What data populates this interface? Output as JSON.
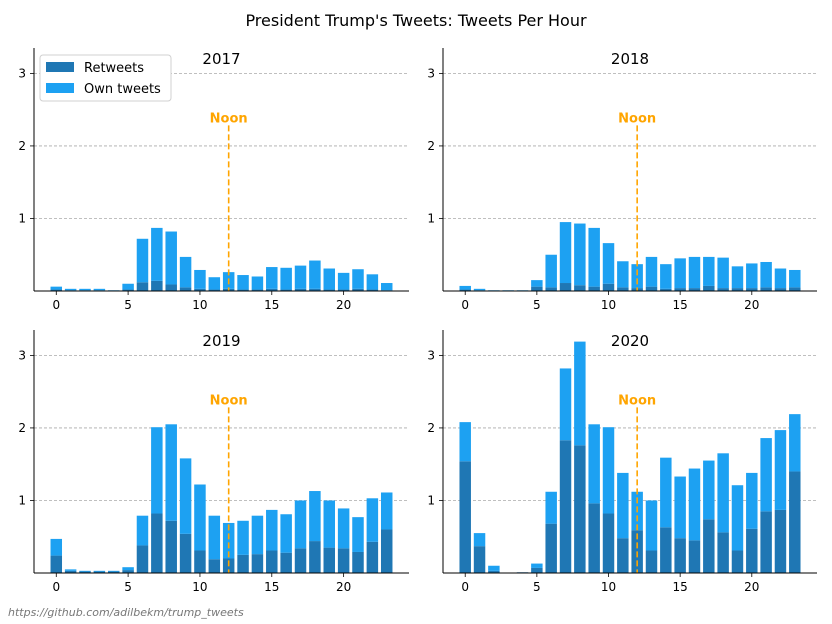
{
  "title": "President Trump's Tweets: Tweets Per Hour",
  "credit": "https://github.com/adilbekm/trump_tweets",
  "legend": {
    "placement": "upper-left",
    "entries": [
      "Retweets",
      "Own tweets"
    ]
  },
  "colors": {
    "retweets": "#1F77B4",
    "own": "#1DA1F2",
    "noon": "#FFA500",
    "grid": "#AAAAAA"
  },
  "chart_data": [
    {
      "type": "bar",
      "stacked": true,
      "title": "2017",
      "x": [
        0,
        1,
        2,
        3,
        4,
        5,
        6,
        7,
        8,
        9,
        10,
        11,
        12,
        13,
        14,
        15,
        16,
        17,
        18,
        19,
        20,
        21,
        22,
        23
      ],
      "xticks": [
        0,
        5,
        10,
        15,
        20
      ],
      "yticks": [
        1,
        2,
        3
      ],
      "ylim": [
        0,
        3.35
      ],
      "grid": "y-dashed",
      "annotation": {
        "x": 12,
        "label": "Noon",
        "y_top": 2.27
      },
      "series": [
        {
          "name": "Retweets",
          "values": [
            0.02,
            0.01,
            0.01,
            0.01,
            0.0,
            0.02,
            0.12,
            0.14,
            0.09,
            0.05,
            0.03,
            0.02,
            0.03,
            0.02,
            0.02,
            0.03,
            0.02,
            0.03,
            0.03,
            0.02,
            0.02,
            0.03,
            0.02,
            0.01
          ]
        },
        {
          "name": "Own tweets",
          "values": [
            0.04,
            0.02,
            0.02,
            0.02,
            0.01,
            0.08,
            0.6,
            0.73,
            0.73,
            0.42,
            0.26,
            0.17,
            0.23,
            0.2,
            0.18,
            0.3,
            0.3,
            0.32,
            0.39,
            0.29,
            0.23,
            0.27,
            0.21,
            0.1
          ]
        }
      ]
    },
    {
      "type": "bar",
      "stacked": true,
      "title": "2018",
      "x": [
        0,
        1,
        2,
        3,
        4,
        5,
        6,
        7,
        8,
        9,
        10,
        11,
        12,
        13,
        14,
        15,
        16,
        17,
        18,
        19,
        20,
        21,
        22,
        23
      ],
      "xticks": [
        0,
        5,
        10,
        15,
        20
      ],
      "yticks": [
        1,
        2,
        3
      ],
      "ylim": [
        0,
        3.35
      ],
      "grid": "y-dashed",
      "annotation": {
        "x": 12,
        "label": "Noon",
        "y_top": 2.27
      },
      "series": [
        {
          "name": "Retweets",
          "values": [
            0.02,
            0.01,
            0.0,
            0.0,
            0.0,
            0.06,
            0.05,
            0.11,
            0.08,
            0.06,
            0.1,
            0.05,
            0.04,
            0.06,
            0.03,
            0.04,
            0.04,
            0.07,
            0.04,
            0.04,
            0.04,
            0.05,
            0.04,
            0.05
          ]
        },
        {
          "name": "Own tweets",
          "values": [
            0.05,
            0.02,
            0.01,
            0.01,
            0.01,
            0.09,
            0.45,
            0.84,
            0.85,
            0.81,
            0.56,
            0.36,
            0.33,
            0.41,
            0.34,
            0.41,
            0.43,
            0.4,
            0.42,
            0.3,
            0.34,
            0.35,
            0.27,
            0.24
          ]
        }
      ]
    },
    {
      "type": "bar",
      "stacked": true,
      "title": "2019",
      "x": [
        0,
        1,
        2,
        3,
        4,
        5,
        6,
        7,
        8,
        9,
        10,
        11,
        12,
        13,
        14,
        15,
        16,
        17,
        18,
        19,
        20,
        21,
        22,
        23
      ],
      "xticks": [
        0,
        5,
        10,
        15,
        20
      ],
      "yticks": [
        1,
        2,
        3
      ],
      "ylim": [
        0,
        3.35
      ],
      "grid": "y-dashed",
      "annotation": {
        "x": 12,
        "label": "Noon",
        "y_top": 2.27
      },
      "series": [
        {
          "name": "Retweets",
          "values": [
            0.24,
            0.03,
            0.02,
            0.02,
            0.02,
            0.04,
            0.38,
            0.82,
            0.72,
            0.54,
            0.31,
            0.19,
            0.2,
            0.25,
            0.26,
            0.31,
            0.28,
            0.34,
            0.44,
            0.35,
            0.34,
            0.29,
            0.43,
            0.6
          ]
        },
        {
          "name": "Own tweets",
          "values": [
            0.23,
            0.02,
            0.01,
            0.01,
            0.01,
            0.04,
            0.41,
            1.19,
            1.33,
            1.04,
            0.91,
            0.6,
            0.49,
            0.47,
            0.53,
            0.56,
            0.53,
            0.66,
            0.69,
            0.65,
            0.55,
            0.48,
            0.6,
            0.51
          ]
        }
      ]
    },
    {
      "type": "bar",
      "stacked": true,
      "title": "2020",
      "x": [
        0,
        1,
        2,
        3,
        4,
        5,
        6,
        7,
        8,
        9,
        10,
        11,
        12,
        13,
        14,
        15,
        16,
        17,
        18,
        19,
        20,
        21,
        22,
        23
      ],
      "xticks": [
        0,
        5,
        10,
        15,
        20
      ],
      "yticks": [
        1,
        2,
        3
      ],
      "ylim": [
        0,
        3.35
      ],
      "grid": "y-dashed",
      "annotation": {
        "x": 12,
        "label": "Noon",
        "y_top": 2.27
      },
      "series": [
        {
          "name": "Retweets",
          "values": [
            1.54,
            0.37,
            0.03,
            0.0,
            0.01,
            0.07,
            0.68,
            1.83,
            1.76,
            0.96,
            0.82,
            0.48,
            0.59,
            0.31,
            0.63,
            0.48,
            0.45,
            0.74,
            0.56,
            0.31,
            0.61,
            0.85,
            0.87,
            1.4
          ]
        },
        {
          "name": "Own tweets",
          "values": [
            0.54,
            0.18,
            0.07,
            0.0,
            0.0,
            0.06,
            0.44,
            0.99,
            1.43,
            1.09,
            1.19,
            0.9,
            0.53,
            0.69,
            0.96,
            0.85,
            0.99,
            0.81,
            1.09,
            0.9,
            0.77,
            1.01,
            1.1,
            0.79
          ]
        }
      ]
    }
  ]
}
